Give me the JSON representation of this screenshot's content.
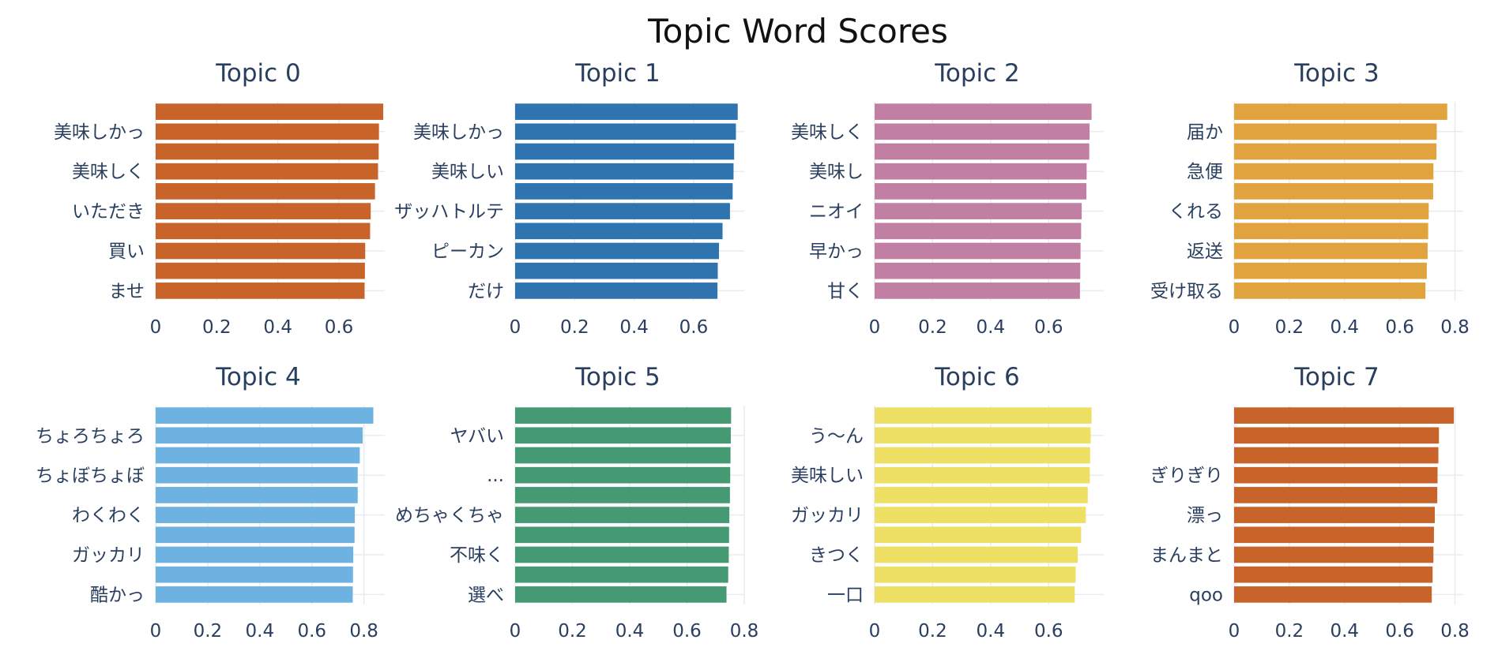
{
  "chart_data": {
    "type": "bar",
    "orientation": "horizontal",
    "title": "Topic Word Scores",
    "grid": "x-axis gridlines on",
    "panels": [
      {
        "title": "Topic 0",
        "color": "#C8642A",
        "xlim": [
          0,
          0.75
        ],
        "xticks": [
          "0",
          "0.2",
          "0.4",
          "0.6"
        ],
        "categories": [
          "ませ",
          "",
          "買い",
          "",
          "いただき",
          "",
          "美味しく",
          "",
          "美味しかっ",
          ""
        ],
        "values": [
          0.684,
          0.685,
          0.686,
          0.702,
          0.704,
          0.718,
          0.728,
          0.73,
          0.731,
          0.745
        ]
      },
      {
        "title": "Topic 1",
        "color": "#3074AF",
        "xlim": [
          0,
          0.77
        ],
        "xticks": [
          "0",
          "0.2",
          "0.4",
          "0.6"
        ],
        "categories": [
          "だけ",
          "",
          "ピーカン",
          "",
          "ザッハトルテ",
          "",
          "美味しい",
          "",
          "美味しかっ",
          ""
        ],
        "values": [
          0.68,
          0.681,
          0.685,
          0.697,
          0.722,
          0.731,
          0.734,
          0.736,
          0.742,
          0.748
        ]
      },
      {
        "title": "Topic 2",
        "color": "#C27FA4",
        "xlim": [
          0,
          0.79
        ],
        "xticks": [
          "0",
          "0.2",
          "0.4",
          "0.6"
        ],
        "categories": [
          "甘く",
          "",
          "早かっ",
          "",
          "ニオイ",
          "",
          "美味し",
          "",
          "美味しく",
          ""
        ],
        "values": [
          0.708,
          0.709,
          0.71,
          0.712,
          0.714,
          0.73,
          0.731,
          0.74,
          0.741,
          0.748
        ]
      },
      {
        "title": "Topic 3",
        "color": "#E1A33D",
        "xlim": [
          0,
          0.83
        ],
        "xticks": [
          "0",
          "0.2",
          "0.4",
          "0.6",
          "0.8"
        ],
        "categories": [
          "受け取る",
          "",
          "返送",
          "",
          "くれる",
          "",
          "急便",
          "",
          "届か",
          ""
        ],
        "values": [
          0.693,
          0.698,
          0.701,
          0.703,
          0.705,
          0.721,
          0.722,
          0.733,
          0.734,
          0.772
        ]
      },
      {
        "title": "Topic 4",
        "color": "#6EB2E2",
        "xlim": [
          0,
          0.88
        ],
        "xticks": [
          "0",
          "0.2",
          "0.4",
          "0.6",
          "0.8"
        ],
        "categories": [
          "酷かっ",
          "",
          "ガッカリ",
          "",
          "わくわく",
          "",
          "ちょぼちょぼ",
          "",
          "ちょろちょろ",
          ""
        ],
        "values": [
          0.757,
          0.758,
          0.759,
          0.764,
          0.765,
          0.776,
          0.776,
          0.784,
          0.795,
          0.836
        ]
      },
      {
        "title": "Topic 5",
        "color": "#459A74",
        "xlim": [
          0,
          0.8
        ],
        "xticks": [
          "0",
          "0.2",
          "0.4",
          "0.6",
          "0.8"
        ],
        "categories": [
          "選べ",
          "",
          "不味く",
          "",
          "めちゃくちゃ",
          "",
          "...",
          "",
          "ヤバい",
          ""
        ],
        "values": [
          0.738,
          0.744,
          0.746,
          0.747,
          0.748,
          0.75,
          0.751,
          0.752,
          0.753,
          0.754
        ]
      },
      {
        "title": "Topic 6",
        "color": "#EEE064",
        "xlim": [
          0,
          0.79
        ],
        "xticks": [
          "0",
          "0.2",
          "0.4",
          "0.6"
        ],
        "categories": [
          "一口",
          "",
          "きつく",
          "",
          "ガッカリ",
          "",
          "美味しい",
          "",
          "う〜ん",
          ""
        ],
        "values": [
          0.69,
          0.693,
          0.7,
          0.712,
          0.728,
          0.735,
          0.742,
          0.743,
          0.745,
          0.748
        ]
      },
      {
        "title": "Topic 7",
        "color": "#C8642A",
        "xlim": [
          0,
          0.83
        ],
        "xticks": [
          "0",
          "0.2",
          "0.4",
          "0.6",
          "0.8"
        ],
        "categories": [
          "qoo",
          "",
          "まんまと",
          "",
          "漂っ",
          "",
          "ぎりぎり",
          "",
          "",
          ""
        ],
        "values": [
          0.716,
          0.719,
          0.722,
          0.724,
          0.727,
          0.736,
          0.737,
          0.74,
          0.742,
          0.796
        ]
      }
    ]
  },
  "colors": {
    "axis_text": "#2a3f5f",
    "grid": "#e8ecf2",
    "title": "#111111"
  }
}
